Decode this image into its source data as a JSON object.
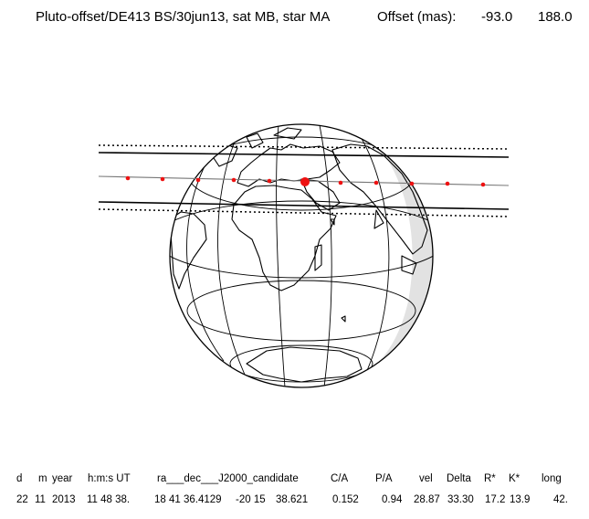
{
  "header": {
    "title": "Pluto-offset/DE413 BS/30jun13, sat MB, star MA",
    "offset_label": "Offset (mas):",
    "offset_x": "-93.0",
    "offset_y": "188.0"
  },
  "footer": {
    "headers": [
      "d",
      "m",
      "year",
      "h:m:s UT",
      "ra___dec___J2000_candidate",
      "C/A",
      "P/A",
      "vel",
      "Delta",
      "R*",
      "K*",
      "long"
    ],
    "values": [
      "22",
      "11",
      "2013",
      "11 48 38.",
      "18 41 36.4129",
      "-20 15",
      "38.621",
      "0.152",
      "0.94",
      "28.87",
      "33.30",
      "17.2",
      "13.9",
      "42."
    ]
  },
  "colors": {
    "path_line": "#000000",
    "central_line": "#777777",
    "time_dots": "#ee1111",
    "night_shade": "#c8c8c8"
  }
}
